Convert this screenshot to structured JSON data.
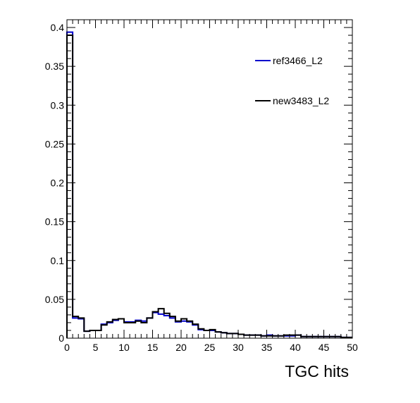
{
  "chart_data": {
    "type": "line",
    "drawstyle": "steps-histogram",
    "title": "",
    "xlabel": "TGC hits",
    "ylabel": "",
    "xlim": [
      0,
      50
    ],
    "ylim": [
      0,
      0.41
    ],
    "bin_width": 1,
    "x_ticks": [
      0,
      5,
      10,
      15,
      20,
      25,
      30,
      35,
      40,
      45,
      50
    ],
    "x_tick_labels": [
      "0",
      "5",
      "10",
      "15",
      "20",
      "25",
      "30",
      "35",
      "40",
      "45",
      "50"
    ],
    "y_ticks": [
      0,
      0.05,
      0.1,
      0.15,
      0.2,
      0.25,
      0.3,
      0.35,
      0.4
    ],
    "y_tick_labels": [
      "0",
      "0.05",
      "0.1",
      "0.15",
      "0.2",
      "0.25",
      "0.3",
      "0.35",
      "0.4"
    ],
    "legend_position": "top-right",
    "grid": false,
    "series": [
      {
        "name": "ref3466_L2",
        "color": "#0000cc",
        "values": [
          0.394,
          0.026,
          0.025,
          0.009,
          0.01,
          0.01,
          0.018,
          0.02,
          0.023,
          0.025,
          0.021,
          0.021,
          0.023,
          0.022,
          0.026,
          0.033,
          0.031,
          0.029,
          0.026,
          0.021,
          0.022,
          0.021,
          0.017,
          0.011,
          0.01,
          0.01,
          0.008,
          0.007,
          0.006,
          0.006,
          0.005,
          0.004,
          0.004,
          0.004,
          0.003,
          0.004,
          0.003,
          0.003,
          0.003,
          0.003,
          0.004,
          0.002,
          0.002,
          0.002,
          0.002,
          0.002,
          0.002,
          0.002,
          0.001,
          0.001,
          0.011
        ]
      },
      {
        "name": "new3483_L2",
        "color": "#000000",
        "values": [
          0.39,
          0.028,
          0.026,
          0.009,
          0.01,
          0.01,
          0.017,
          0.021,
          0.024,
          0.025,
          0.02,
          0.02,
          0.022,
          0.02,
          0.026,
          0.034,
          0.038,
          0.032,
          0.028,
          0.022,
          0.025,
          0.022,
          0.018,
          0.012,
          0.01,
          0.011,
          0.008,
          0.007,
          0.006,
          0.006,
          0.005,
          0.004,
          0.004,
          0.004,
          0.003,
          0.003,
          0.003,
          0.003,
          0.004,
          0.004,
          0.004,
          0.002,
          0.002,
          0.002,
          0.002,
          0.002,
          0.002,
          0.002,
          0.001,
          0.001,
          0.012
        ]
      }
    ]
  }
}
